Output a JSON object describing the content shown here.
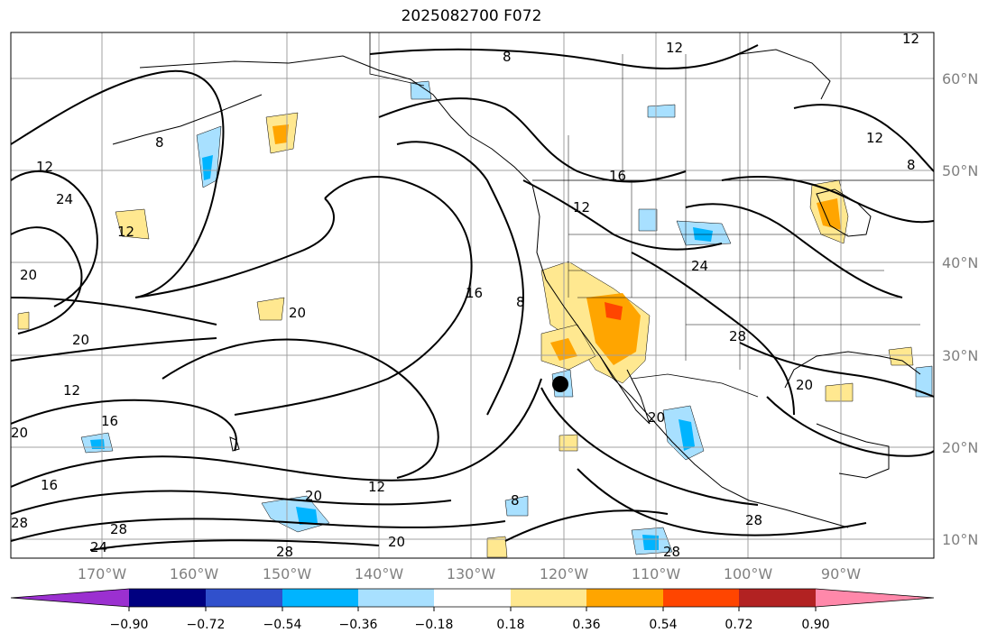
{
  "title": "2025082700 F072",
  "lat_labels": [
    "60°N",
    "50°N",
    "40°N",
    "30°N",
    "20°N",
    "10°N"
  ],
  "lon_labels": [
    "170°W",
    "160°W",
    "150°W",
    "140°W",
    "130°W",
    "120°W",
    "110°W",
    "100°W",
    "90°W"
  ],
  "colorbar": {
    "colors": [
      "#9b30d0",
      "#000080",
      "#3050cc",
      "#00b4ff",
      "#a8e0ff",
      "#ffffff",
      "#ffe890",
      "#ffa500",
      "#ff4500",
      "#b22222",
      "#ff88aa"
    ],
    "labels": [
      "−0.90",
      "−0.72",
      "−0.54",
      "−0.36",
      "−0.18",
      "0.18",
      "0.36",
      "0.54",
      "0.72",
      "0.90"
    ]
  },
  "contour_labels": [
    "12",
    "8",
    "12",
    "8",
    "12",
    "24",
    "12",
    "20",
    "20",
    "20",
    "12",
    "16",
    "20",
    "16",
    "8",
    "16",
    "12",
    "24",
    "28",
    "20",
    "20",
    "8",
    "12",
    "28",
    "24",
    "28",
    "20",
    "28",
    "12",
    "8",
    "28",
    "28",
    "16",
    "20"
  ],
  "colors": {
    "grid": "#a0a0a0",
    "contour": "#000000",
    "coast": "#000000"
  }
}
